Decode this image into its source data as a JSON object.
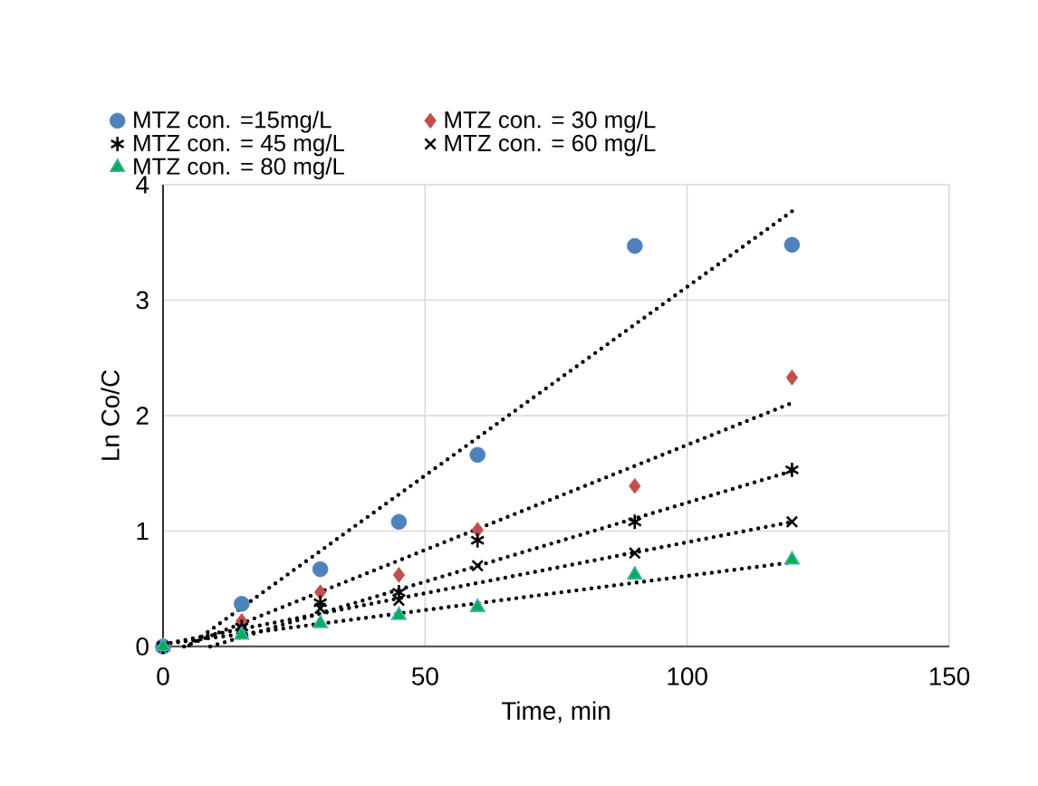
{
  "chart_data": {
    "type": "scatter",
    "xlabel": "Time, min",
    "ylabel": "Ln Co/C",
    "x": [
      0,
      15,
      30,
      45,
      60,
      90,
      120
    ],
    "xlim": [
      0,
      150
    ],
    "xticks": [
      0,
      50,
      100,
      150
    ],
    "ylim": [
      0,
      4
    ],
    "yticks": [
      0,
      1,
      2,
      3,
      4
    ],
    "grid": true,
    "legend": "top",
    "series": [
      {
        "name": "MTZ  con. =15mg/L",
        "color": "#4f81bd",
        "marker": "circle",
        "values": [
          0,
          0.37,
          0.67,
          1.08,
          1.66,
          3.47,
          3.48
        ]
      },
      {
        "name": "MTZ con. = 30 mg/L",
        "color": "#c0504d",
        "marker": "diamond",
        "values": [
          0,
          0.22,
          0.47,
          0.62,
          1.01,
          1.39,
          2.33
        ]
      },
      {
        "name": "MTZ con. = 45 mg/L",
        "color": "#000000",
        "values": [
          0,
          0.17,
          0.38,
          0.47,
          0.92,
          1.08,
          1.53
        ]
      },
      {
        "name": "MTZ con. = 60 mg/L",
        "color": "#000000",
        "marker": "cross",
        "values": [
          0,
          0.15,
          0.33,
          0.4,
          0.7,
          0.81,
          1.08
        ]
      },
      {
        "name": "MTZ con. = 80 mg/L",
        "color": "#00b050",
        "marker": "triangle",
        "values": [
          0,
          0.1,
          0.2,
          0.27,
          0.34,
          0.62,
          0.75
        ]
      },
      {
        "type": "line",
        "color": "#000000",
        "marker": "none",
        "line_style": "dotted",
        "x": [
          5,
          120
        ],
        "values": [
          0.01,
          3.77
        ]
      },
      {
        "type": "line",
        "color": "#000000",
        "marker": "none",
        "line_style": "dotted",
        "x": [
          4,
          120
        ],
        "values": [
          0.0,
          2.11
        ]
      },
      {
        "type": "line",
        "color": "#000000",
        "marker": "none",
        "line_style": "dotted",
        "x": [
          9,
          120
        ],
        "values": [
          0.0,
          1.52
        ]
      },
      {
        "type": "line",
        "color": "#000000",
        "marker": "none",
        "line_style": "dotted",
        "x": [
          0,
          120
        ],
        "values": [
          0.02,
          1.08
        ]
      },
      {
        "type": "line",
        "color": "#000000",
        "marker": "none",
        "line_style": "dotted",
        "x": [
          0,
          120
        ],
        "values": [
          0.02,
          0.73
        ]
      }
    ]
  }
}
